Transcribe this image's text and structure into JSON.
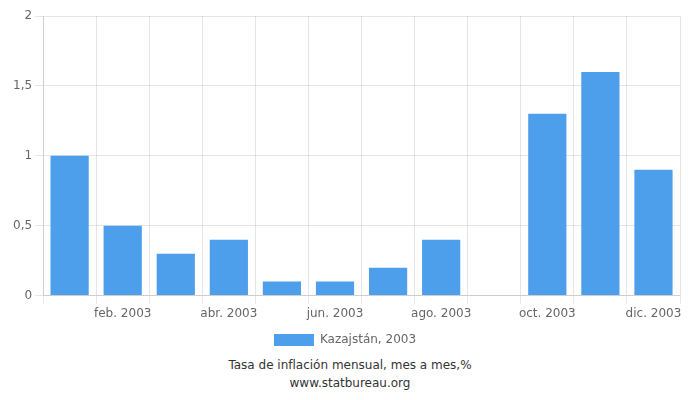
{
  "chart_data": {
    "type": "bar",
    "categories": [
      null,
      "feb. 2003",
      null,
      "abr. 2003",
      null,
      "jun. 2003",
      null,
      "ago. 2003",
      null,
      "oct. 2003",
      null,
      "dic. 2003"
    ],
    "series": [
      {
        "name": "Kazajstán, 2003",
        "color": "#4d9fec",
        "values": [
          1.0,
          0.5,
          0.3,
          0.4,
          0.1,
          0.1,
          0.2,
          0.4,
          0.0,
          1.3,
          1.6,
          0.9
        ]
      }
    ],
    "ylim": [
      0,
      2.0
    ],
    "yticks": [
      0,
      {
        "value": 0.5,
        "label": "0,5"
      },
      1,
      {
        "value": 1.5,
        "label": "1,5"
      },
      2
    ],
    "grid": true,
    "legend": "bottom",
    "annotations": [
      "Tasa de inflación mensual, mes a mes,%",
      "www.statbureau.org"
    ]
  }
}
